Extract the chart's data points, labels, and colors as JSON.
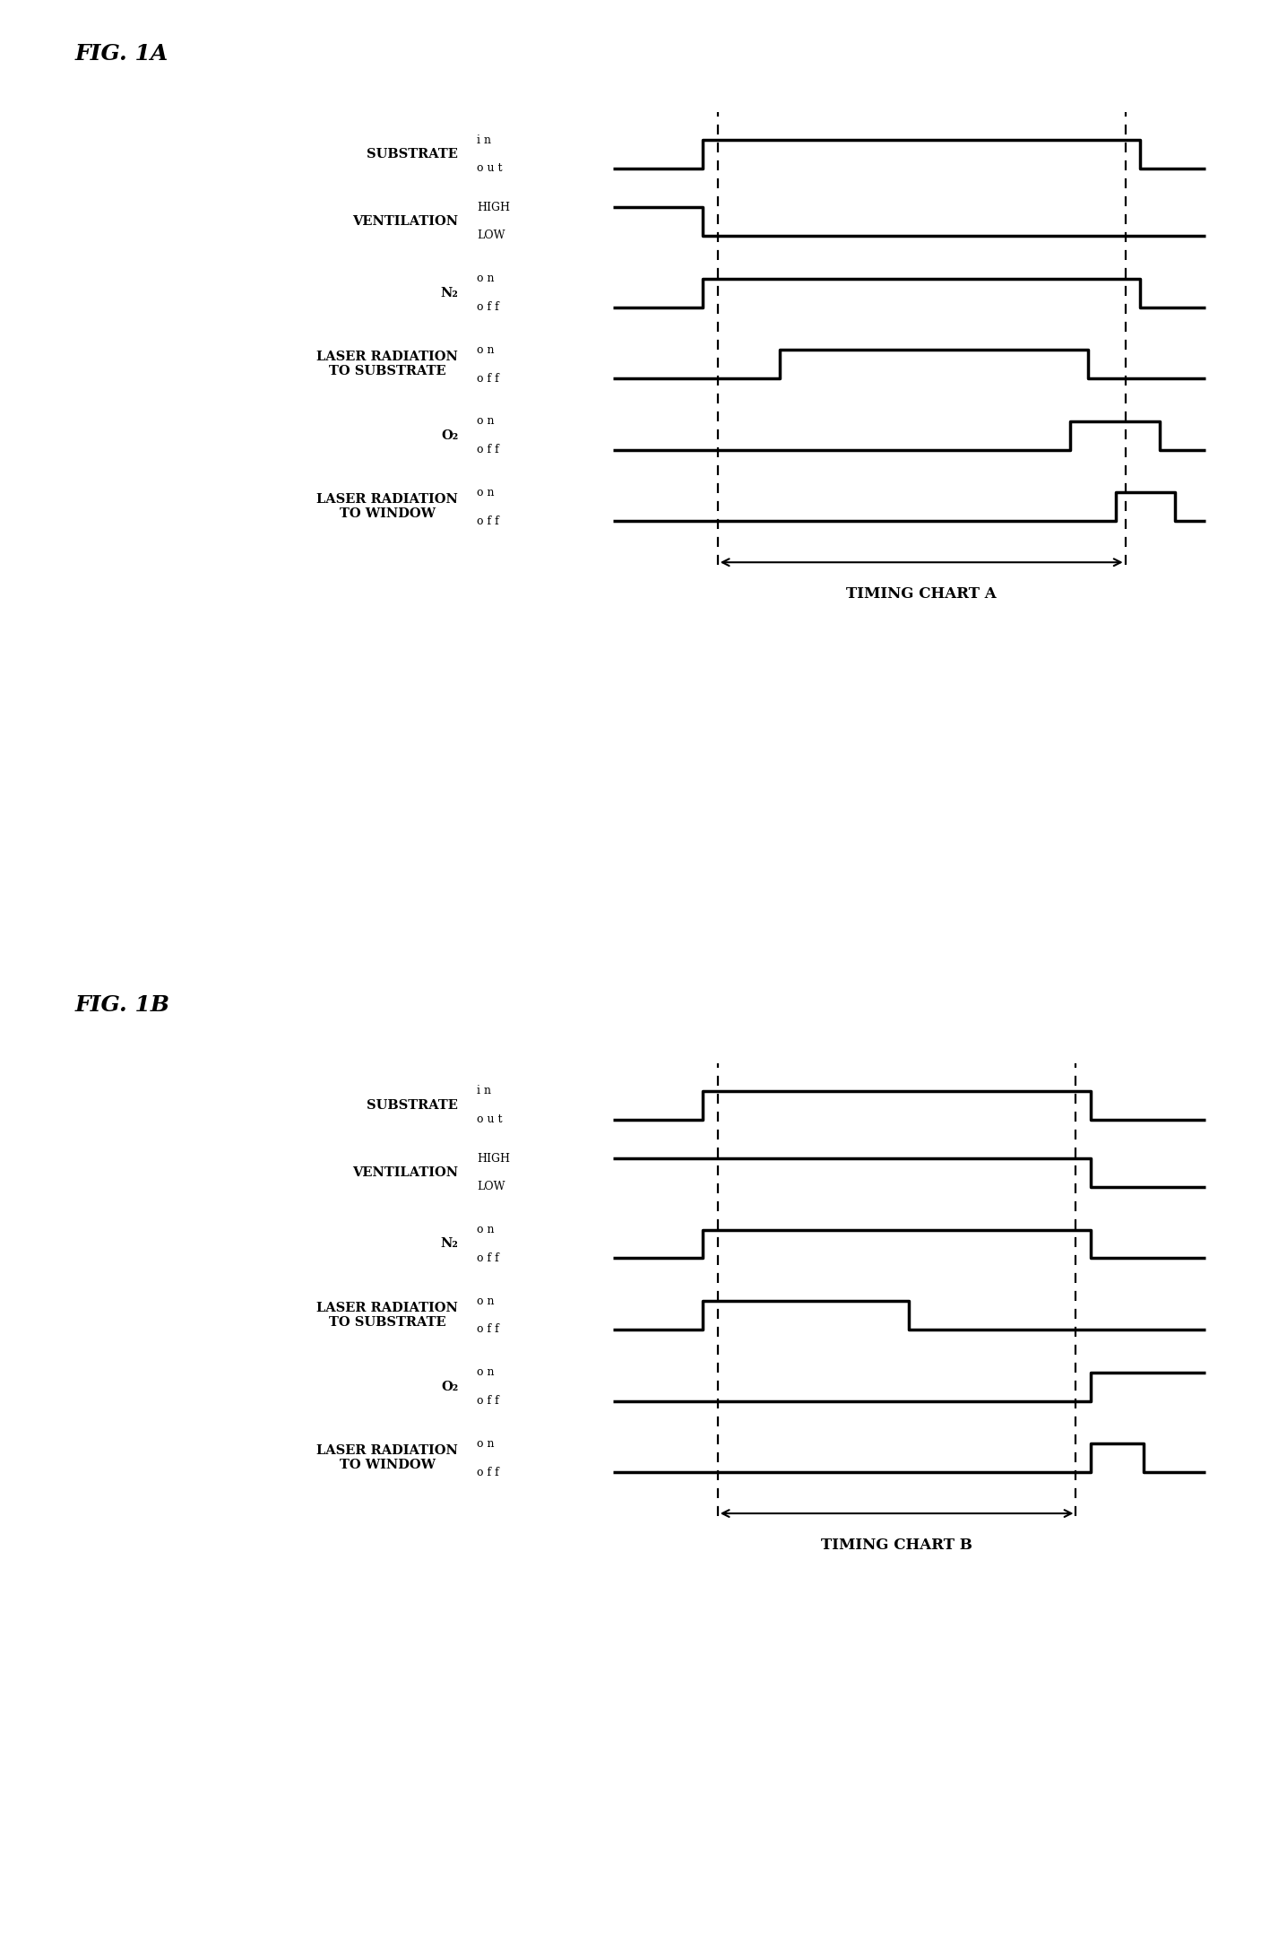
{
  "fig_label_A": "FIG. 1A",
  "fig_label_B": "FIG. 1B",
  "timing_chart_A": "TIMING CHART A",
  "timing_chart_B": "TIMING CHART B",
  "row_labels": [
    "SUBSTRATE",
    "VENTILATION",
    "N₂",
    "LASER RADIATION\nTO SUBSTRATE",
    "O₂",
    "LASER RADIATION\nTO WINDOW"
  ],
  "background_color": "#ffffff",
  "lw_signal": 2.5,
  "lw_dashed": 1.6,
  "lw_arrow": 1.5,
  "fs_fig_label": 18,
  "fs_row_label": 10.5,
  "fs_level_label": 9.0,
  "fs_chart_label": 12
}
